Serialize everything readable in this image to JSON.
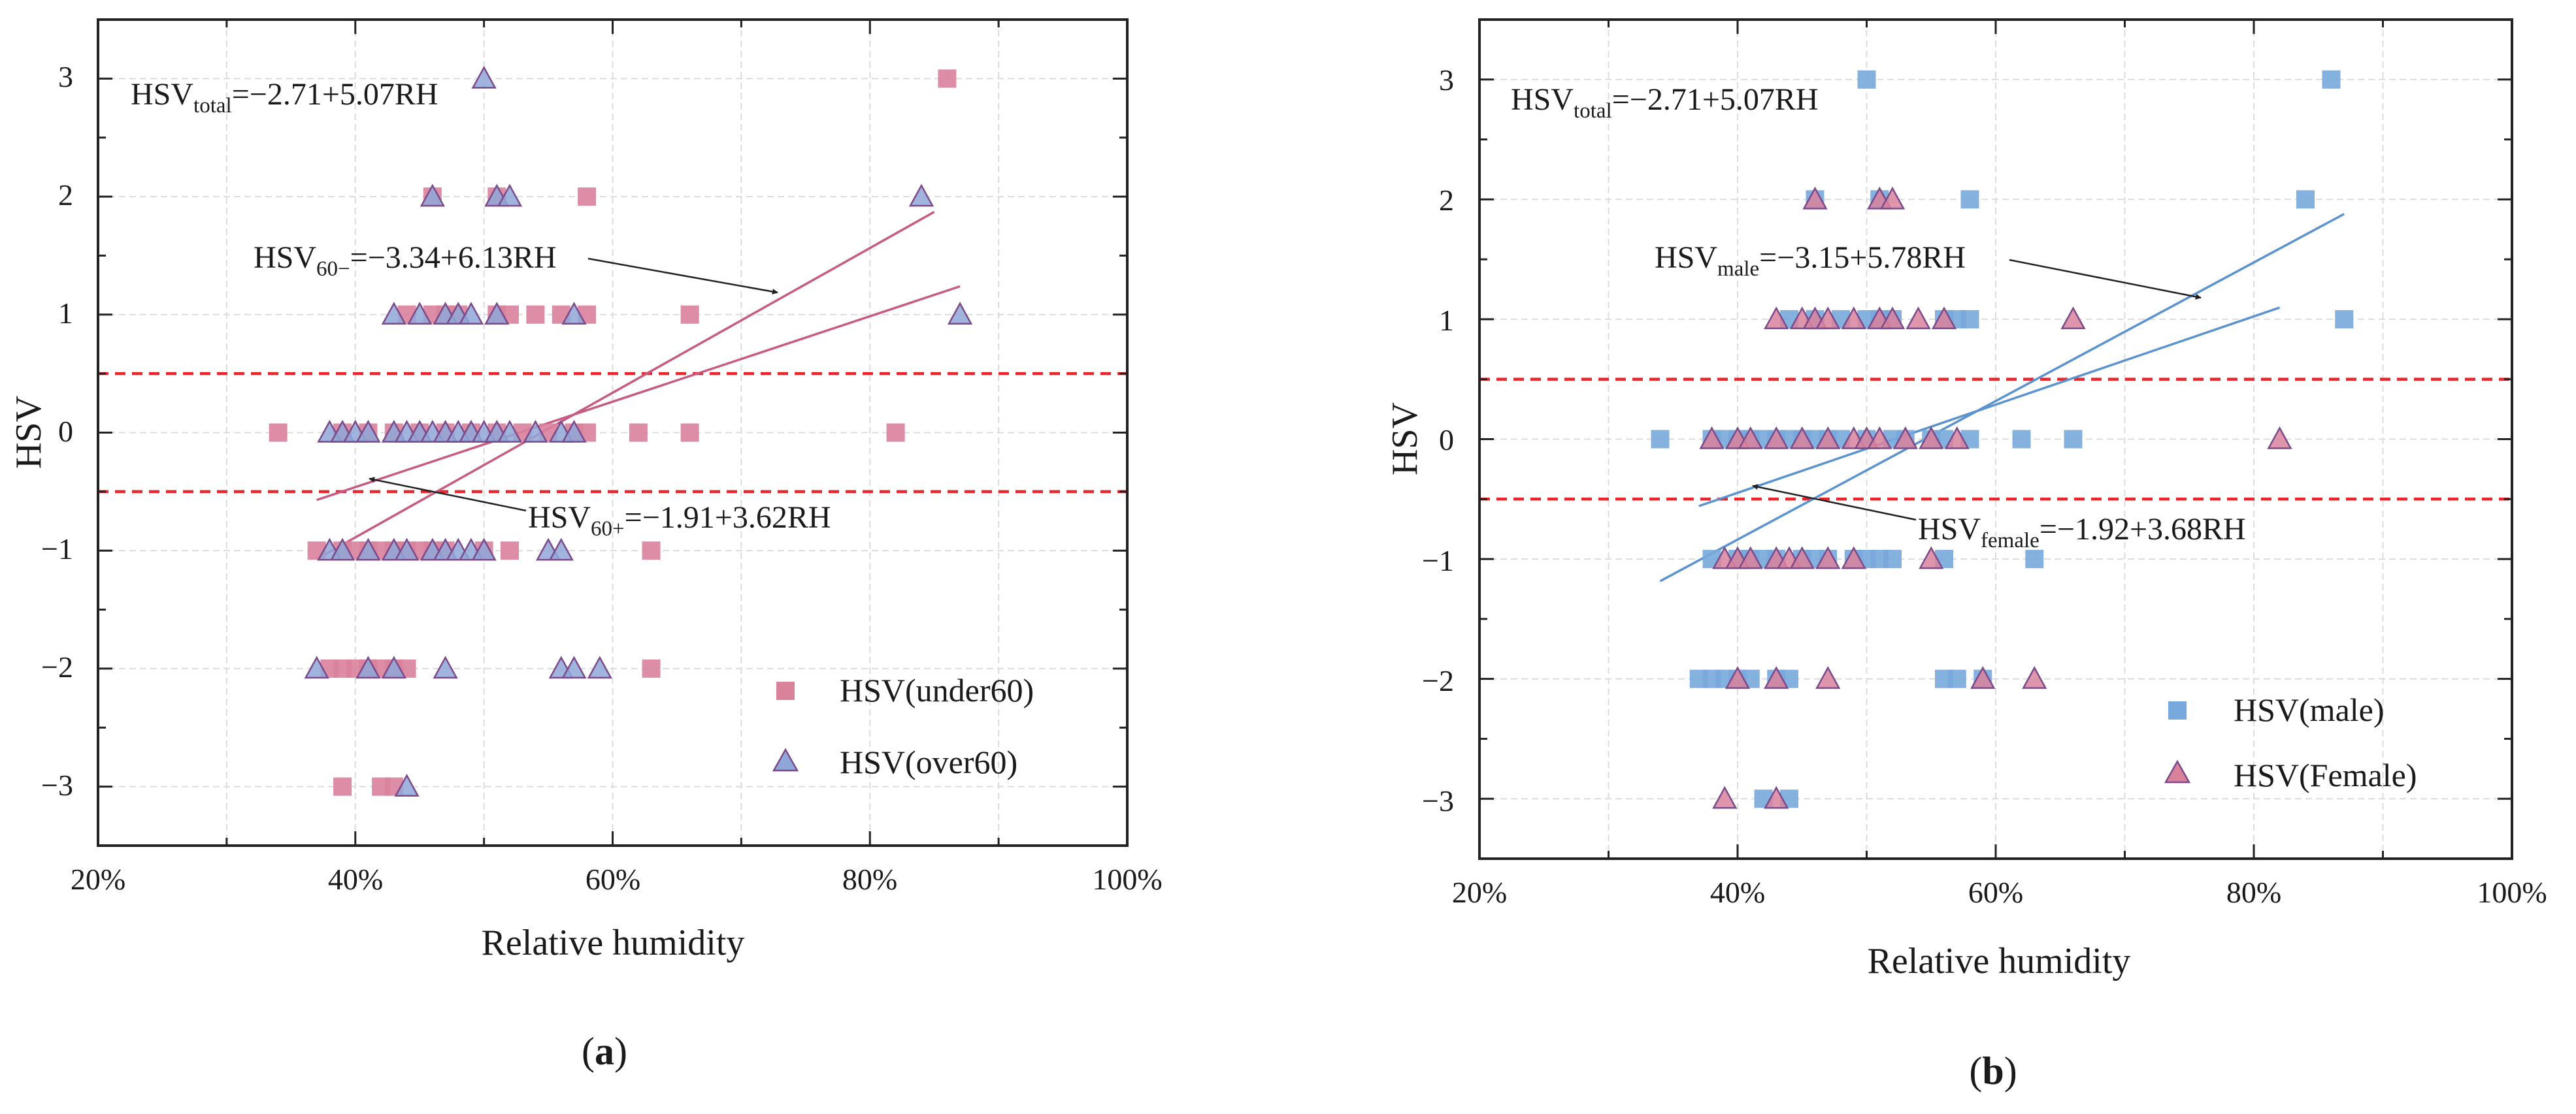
{
  "chart_data": [
    {
      "type": "scatter",
      "panel_label": "a",
      "xlabel": "Relative humidity",
      "ylabel": "HSV",
      "xlim": [
        0.2,
        1.0
      ],
      "ylim": [
        -3.5,
        3.5
      ],
      "x_ticks": [
        "20%",
        "40%",
        "60%",
        "80%",
        "100%"
      ],
      "y_ticks": [
        "−3",
        "−2",
        "−1",
        "0",
        "1",
        "2",
        "3"
      ],
      "grid": true,
      "legend_position": "bottom-right",
      "thresholds": [
        0.5,
        -0.5
      ],
      "series": [
        {
          "name": "HSV(under60)",
          "marker": "square",
          "color": "#d9829c",
          "points": [
            [
              0.34,
              0
            ],
            [
              0.86,
              3
            ],
            [
              0.46,
              2
            ],
            [
              0.51,
              2
            ],
            [
              0.58,
              2
            ],
            [
              0.44,
              1
            ],
            [
              0.46,
              1
            ],
            [
              0.47,
              1
            ],
            [
              0.48,
              1
            ],
            [
              0.51,
              1
            ],
            [
              0.52,
              1
            ],
            [
              0.54,
              1
            ],
            [
              0.56,
              1
            ],
            [
              0.58,
              1
            ],
            [
              0.66,
              1
            ],
            [
              0.39,
              0
            ],
            [
              0.41,
              0
            ],
            [
              0.43,
              0
            ],
            [
              0.45,
              0
            ],
            [
              0.47,
              0
            ],
            [
              0.49,
              0
            ],
            [
              0.51,
              0
            ],
            [
              0.53,
              0
            ],
            [
              0.55,
              0
            ],
            [
              0.57,
              0
            ],
            [
              0.58,
              0
            ],
            [
              0.62,
              0
            ],
            [
              0.66,
              0
            ],
            [
              0.82,
              0
            ],
            [
              0.37,
              -1
            ],
            [
              0.39,
              -1
            ],
            [
              0.4,
              -1
            ],
            [
              0.41,
              -1
            ],
            [
              0.42,
              -1
            ],
            [
              0.43,
              -1
            ],
            [
              0.44,
              -1
            ],
            [
              0.45,
              -1
            ],
            [
              0.46,
              -1
            ],
            [
              0.47,
              -1
            ],
            [
              0.5,
              -1
            ],
            [
              0.52,
              -1
            ],
            [
              0.63,
              -1
            ],
            [
              0.38,
              -2
            ],
            [
              0.39,
              -2
            ],
            [
              0.4,
              -2
            ],
            [
              0.41,
              -2
            ],
            [
              0.42,
              -2
            ],
            [
              0.43,
              -2
            ],
            [
              0.44,
              -2
            ],
            [
              0.63,
              -2
            ],
            [
              0.39,
              -3
            ],
            [
              0.42,
              -3
            ],
            [
              0.43,
              -3
            ]
          ]
        },
        {
          "name": "HSV(over60)",
          "marker": "triangle",
          "color": "#8fa7d8",
          "points": [
            [
              0.5,
              3
            ],
            [
              0.46,
              2
            ],
            [
              0.51,
              2
            ],
            [
              0.52,
              2
            ],
            [
              0.84,
              2
            ],
            [
              0.43,
              1
            ],
            [
              0.45,
              1
            ],
            [
              0.47,
              1
            ],
            [
              0.48,
              1
            ],
            [
              0.49,
              1
            ],
            [
              0.51,
              1
            ],
            [
              0.57,
              1
            ],
            [
              0.87,
              1
            ],
            [
              0.38,
              0
            ],
            [
              0.39,
              0
            ],
            [
              0.4,
              0
            ],
            [
              0.41,
              0
            ],
            [
              0.43,
              0
            ],
            [
              0.44,
              0
            ],
            [
              0.45,
              0
            ],
            [
              0.46,
              0
            ],
            [
              0.47,
              0
            ],
            [
              0.48,
              0
            ],
            [
              0.49,
              0
            ],
            [
              0.5,
              0
            ],
            [
              0.51,
              0
            ],
            [
              0.52,
              0
            ],
            [
              0.54,
              0
            ],
            [
              0.56,
              0
            ],
            [
              0.57,
              0
            ],
            [
              0.38,
              -1
            ],
            [
              0.39,
              -1
            ],
            [
              0.41,
              -1
            ],
            [
              0.43,
              -1
            ],
            [
              0.44,
              -1
            ],
            [
              0.46,
              -1
            ],
            [
              0.47,
              -1
            ],
            [
              0.48,
              -1
            ],
            [
              0.49,
              -1
            ],
            [
              0.5,
              -1
            ],
            [
              0.55,
              -1
            ],
            [
              0.56,
              -1
            ],
            [
              0.37,
              -2
            ],
            [
              0.41,
              -2
            ],
            [
              0.43,
              -2
            ],
            [
              0.47,
              -2
            ],
            [
              0.56,
              -2
            ],
            [
              0.57,
              -2
            ],
            [
              0.59,
              -2
            ],
            [
              0.44,
              -3
            ]
          ]
        }
      ],
      "fit_lines": [
        {
          "intercept": -3.34,
          "slope": 6.13,
          "x_range": [
            0.37,
            0.85
          ],
          "color": "#c75b82"
        },
        {
          "intercept": -1.91,
          "slope": 3.62,
          "x_range": [
            0.37,
            0.87
          ],
          "color": "#c75b82"
        }
      ],
      "annotations": [
        {
          "base": "HSV",
          "sub": "total",
          "rest": "=−2.71+5.07RH"
        },
        {
          "base": "HSV",
          "sub": "60−",
          "rest": "=−3.34+6.13RH"
        },
        {
          "base": "HSV",
          "sub": "60+",
          "rest": "=−1.91+3.62RH"
        }
      ]
    },
    {
      "type": "scatter",
      "panel_label": "b",
      "xlabel": "Relative humidity",
      "ylabel": "HSV",
      "xlim": [
        0.2,
        1.0
      ],
      "ylim": [
        -3.5,
        3.5
      ],
      "x_ticks": [
        "20%",
        "40%",
        "60%",
        "80%",
        "100%"
      ],
      "y_ticks": [
        "−3",
        "−2",
        "−1",
        "0",
        "1",
        "2",
        "3"
      ],
      "grid": true,
      "legend_position": "bottom-right",
      "thresholds": [
        0.5,
        -0.5
      ],
      "series": [
        {
          "name": "HSV(male)",
          "marker": "square",
          "color": "#78a9dc",
          "points": [
            [
              0.5,
              3
            ],
            [
              0.86,
              3
            ],
            [
              0.46,
              2
            ],
            [
              0.51,
              2
            ],
            [
              0.58,
              2
            ],
            [
              0.84,
              2
            ],
            [
              0.44,
              1
            ],
            [
              0.46,
              1
            ],
            [
              0.48,
              1
            ],
            [
              0.5,
              1
            ],
            [
              0.51,
              1
            ],
            [
              0.52,
              1
            ],
            [
              0.56,
              1
            ],
            [
              0.57,
              1
            ],
            [
              0.58,
              1
            ],
            [
              0.87,
              1
            ],
            [
              0.34,
              0
            ],
            [
              0.38,
              0
            ],
            [
              0.39,
              0
            ],
            [
              0.4,
              0
            ],
            [
              0.41,
              0
            ],
            [
              0.42,
              0
            ],
            [
              0.43,
              0
            ],
            [
              0.44,
              0
            ],
            [
              0.45,
              0
            ],
            [
              0.46,
              0
            ],
            [
              0.47,
              0
            ],
            [
              0.48,
              0
            ],
            [
              0.5,
              0
            ],
            [
              0.52,
              0
            ],
            [
              0.53,
              0
            ],
            [
              0.55,
              0
            ],
            [
              0.56,
              0
            ],
            [
              0.58,
              0
            ],
            [
              0.62,
              0
            ],
            [
              0.66,
              0
            ],
            [
              0.38,
              -1
            ],
            [
              0.4,
              -1
            ],
            [
              0.41,
              -1
            ],
            [
              0.42,
              -1
            ],
            [
              0.43,
              -1
            ],
            [
              0.45,
              -1
            ],
            [
              0.46,
              -1
            ],
            [
              0.47,
              -1
            ],
            [
              0.49,
              -1
            ],
            [
              0.5,
              -1
            ],
            [
              0.51,
              -1
            ],
            [
              0.52,
              -1
            ],
            [
              0.56,
              -1
            ],
            [
              0.63,
              -1
            ],
            [
              0.37,
              -2
            ],
            [
              0.38,
              -2
            ],
            [
              0.39,
              -2
            ],
            [
              0.4,
              -2
            ],
            [
              0.41,
              -2
            ],
            [
              0.43,
              -2
            ],
            [
              0.44,
              -2
            ],
            [
              0.56,
              -2
            ],
            [
              0.57,
              -2
            ],
            [
              0.59,
              -2
            ],
            [
              0.42,
              -3
            ],
            [
              0.44,
              -3
            ]
          ]
        },
        {
          "name": "HSV(Female)",
          "marker": "triangle",
          "color": "#d9829c",
          "points": [
            [
              0.46,
              2
            ],
            [
              0.51,
              2
            ],
            [
              0.52,
              2
            ],
            [
              0.43,
              1
            ],
            [
              0.45,
              1
            ],
            [
              0.46,
              1
            ],
            [
              0.47,
              1
            ],
            [
              0.49,
              1
            ],
            [
              0.51,
              1
            ],
            [
              0.52,
              1
            ],
            [
              0.54,
              1
            ],
            [
              0.56,
              1
            ],
            [
              0.66,
              1
            ],
            [
              0.38,
              0
            ],
            [
              0.4,
              0
            ],
            [
              0.41,
              0
            ],
            [
              0.43,
              0
            ],
            [
              0.45,
              0
            ],
            [
              0.47,
              0
            ],
            [
              0.49,
              0
            ],
            [
              0.5,
              0
            ],
            [
              0.51,
              0
            ],
            [
              0.53,
              0
            ],
            [
              0.55,
              0
            ],
            [
              0.57,
              0
            ],
            [
              0.82,
              0
            ],
            [
              0.39,
              -1
            ],
            [
              0.4,
              -1
            ],
            [
              0.41,
              -1
            ],
            [
              0.43,
              -1
            ],
            [
              0.44,
              -1
            ],
            [
              0.45,
              -1
            ],
            [
              0.47,
              -1
            ],
            [
              0.49,
              -1
            ],
            [
              0.55,
              -1
            ],
            [
              0.4,
              -2
            ],
            [
              0.43,
              -2
            ],
            [
              0.47,
              -2
            ],
            [
              0.59,
              -2
            ],
            [
              0.63,
              -2
            ],
            [
              0.39,
              -3
            ],
            [
              0.43,
              -3
            ]
          ]
        }
      ],
      "fit_lines": [
        {
          "intercept": -3.15,
          "slope": 5.78,
          "x_range": [
            0.34,
            0.87
          ],
          "color": "#5b93cf"
        },
        {
          "intercept": -1.92,
          "slope": 3.68,
          "x_range": [
            0.37,
            0.82
          ],
          "color": "#5b93cf"
        }
      ],
      "annotations": [
        {
          "base": "HSV",
          "sub": "total",
          "rest": "=−2.71+5.07RH"
        },
        {
          "base": "HSV",
          "sub": "male",
          "rest": "=−3.15+5.78RH"
        },
        {
          "base": "HSV",
          "sub": "female",
          "rest": "=−1.92+3.68RH"
        }
      ]
    }
  ]
}
